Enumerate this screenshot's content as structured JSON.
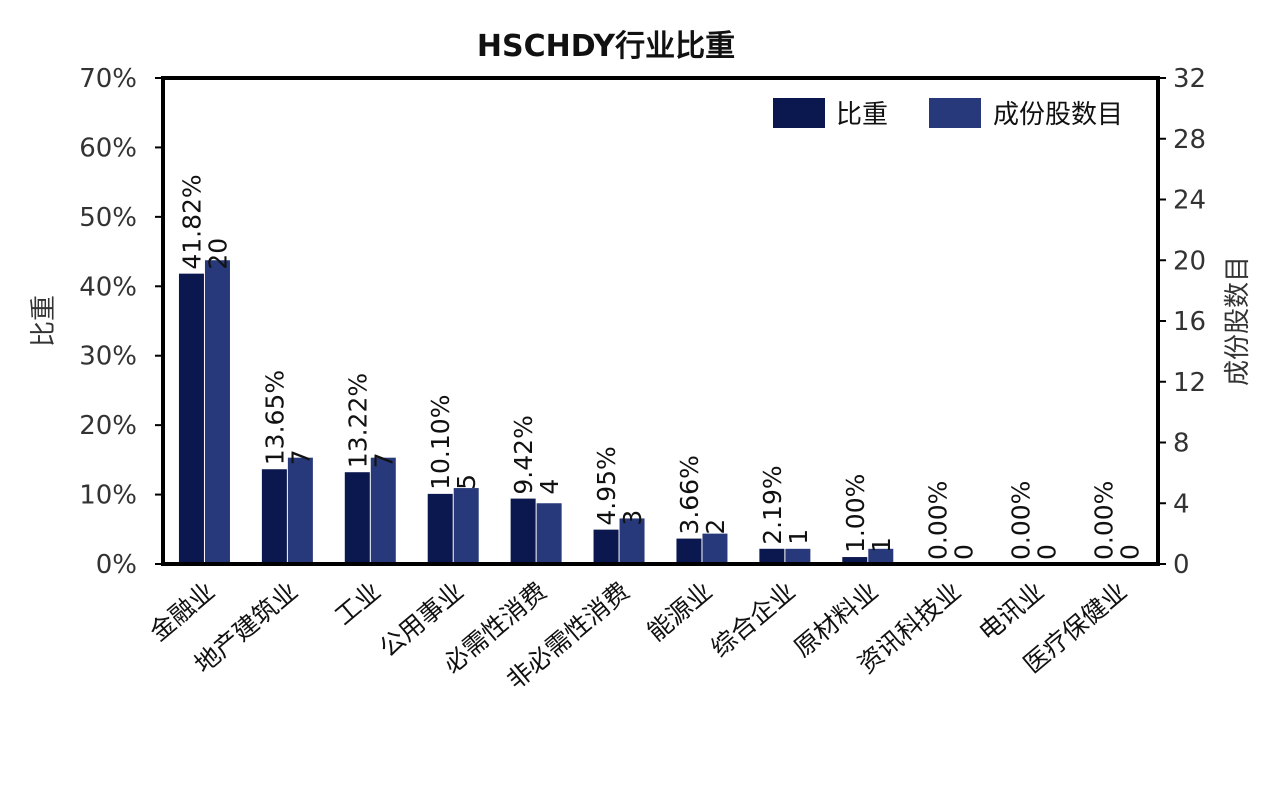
{
  "chart_data": {
    "type": "bar",
    "title": "HSCHDY行业比重",
    "ylabel": "比重",
    "y2label": "成份股数目",
    "categories": [
      "金融业",
      "地产建筑业",
      "工业",
      "公用事业",
      "必需性消费",
      "非必需性消费",
      "能源业",
      "综合企业",
      "原材料业",
      "资讯科技业",
      "电讯业",
      "医疗保健业"
    ],
    "series": [
      {
        "name": "比重",
        "axis": "left",
        "color": "#0b174f",
        "values": [
          41.82,
          13.65,
          13.22,
          10.1,
          9.42,
          4.95,
          3.66,
          2.19,
          1.0,
          0.0,
          0.0,
          0.0
        ],
        "labels": [
          "41.82%",
          "13.65%",
          "13.22%",
          "10.10%",
          "9.42%",
          "4.95%",
          "3.66%",
          "2.19%",
          "1.00%",
          "0.00%",
          "0.00%",
          "0.00%"
        ]
      },
      {
        "name": "成份股数目",
        "axis": "right",
        "color": "#27397a",
        "values": [
          20,
          7,
          7,
          5,
          4,
          3,
          2,
          1,
          1,
          0,
          0,
          0
        ],
        "labels": [
          "20",
          "7",
          "7",
          "5",
          "4",
          "3",
          "2",
          "1",
          "1",
          "0",
          "0",
          "0"
        ]
      }
    ],
    "ylim": [
      0,
      70
    ],
    "y2lim": [
      0,
      32
    ],
    "yticks": [
      "0%",
      "10%",
      "20%",
      "30%",
      "40%",
      "50%",
      "60%",
      "70%"
    ],
    "y2ticks": [
      "0",
      "4",
      "8",
      "12",
      "16",
      "20",
      "24",
      "28",
      "32"
    ],
    "legend_position": "top-right",
    "grid": false
  }
}
